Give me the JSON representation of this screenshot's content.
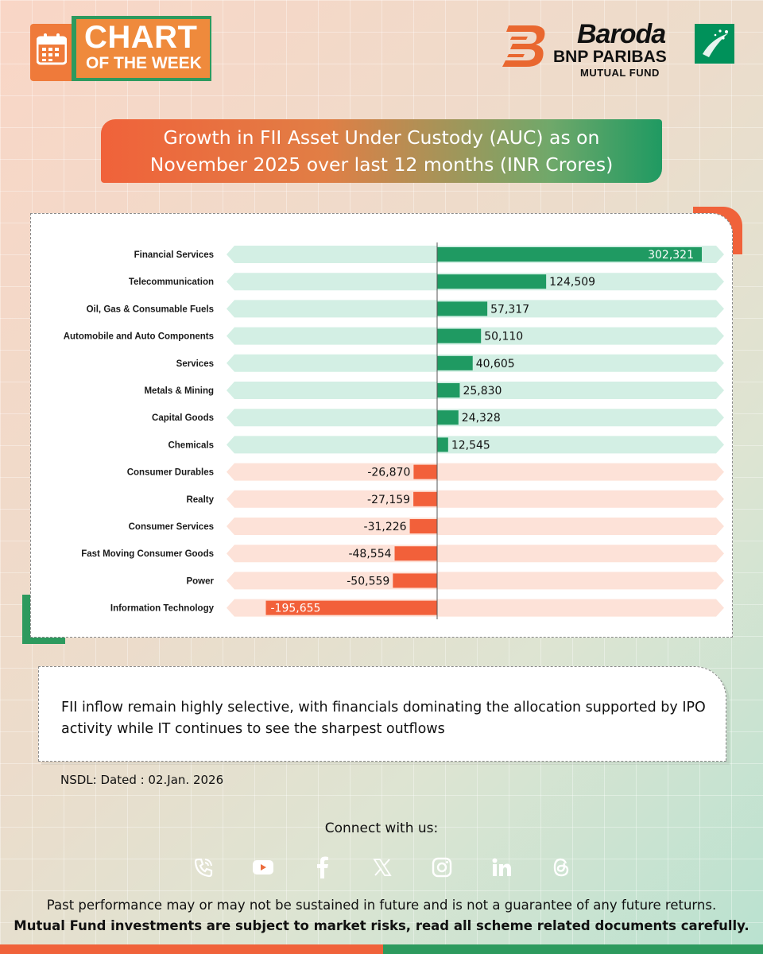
{
  "badge": {
    "line1": "CHART",
    "line2": "OF THE WEEK"
  },
  "logo": {
    "line1": "Baroda",
    "line2": "BNP PARIBAS",
    "line3": "MUTUAL FUND"
  },
  "title": {
    "line1": "Growth in FII Asset Under Custody (AUC) as on",
    "line2": "November 2025 over last 12 months (INR Crores)"
  },
  "colors": {
    "positive": "#1f9a62",
    "negative": "#f2603a",
    "positive_band": "#d3efe4",
    "negative_band": "#fde2d8",
    "orange": "#ef7a3a",
    "green": "#2d9a5e"
  },
  "chart_data": {
    "type": "bar",
    "orientation": "horizontal",
    "title": "Growth in FII Asset Under Custody (AUC) as on November 2025 over last 12 months (INR Crores)",
    "xlabel": "",
    "ylabel": "",
    "xlim": [
      -200000,
      310000
    ],
    "categories": [
      "Financial Services",
      "Telecommunication",
      "Oil, Gas & Consumable Fuels",
      "Automobile and Auto Components",
      "Services",
      "Metals & Mining",
      "Capital Goods",
      "Chemicals",
      "Consumer Durables",
      "Realty",
      "Consumer Services",
      "Fast Moving Consumer Goods",
      "Power",
      "Information Technology"
    ],
    "values": [
      302321,
      124509,
      57317,
      50110,
      40605,
      25830,
      24328,
      12545,
      -26870,
      -27159,
      -31226,
      -48554,
      -50559,
      -195655
    ],
    "value_labels": [
      "302,321",
      "124,509",
      "57,317",
      "50,110",
      "40,605",
      "25,830",
      "24,328",
      "12,545",
      "-26,870",
      "-27,159",
      "-31,226",
      "-48,554",
      "-50,559",
      "-195,655"
    ]
  },
  "note": {
    "text": "FII inflow remain highly selective, with financials dominating the allocation supported by IPO activity while IT continues to see the sharpest outflows"
  },
  "source": "NSDL: Dated : 02.Jan. 2026",
  "connect": {
    "label": "Connect with us:"
  },
  "social": [
    {
      "name": "phone-icon",
      "color": "#ef6a3a"
    },
    {
      "name": "youtube-icon",
      "color": "#ec6c3d"
    },
    {
      "name": "facebook-icon",
      "color": "#d8774a"
    },
    {
      "name": "x-icon",
      "color": "#b58560"
    },
    {
      "name": "instagram-icon",
      "color": "#94886a"
    },
    {
      "name": "linkedin-icon",
      "color": "#6b9468"
    },
    {
      "name": "threads-icon",
      "color": "#2f9a62"
    }
  ],
  "disclaimer": {
    "line1": "Past performance may or may not be sustained in future and is not a guarantee of any future returns.",
    "line2": "Mutual Fund investments are subject to market risks, read all scheme related documents carefully."
  }
}
